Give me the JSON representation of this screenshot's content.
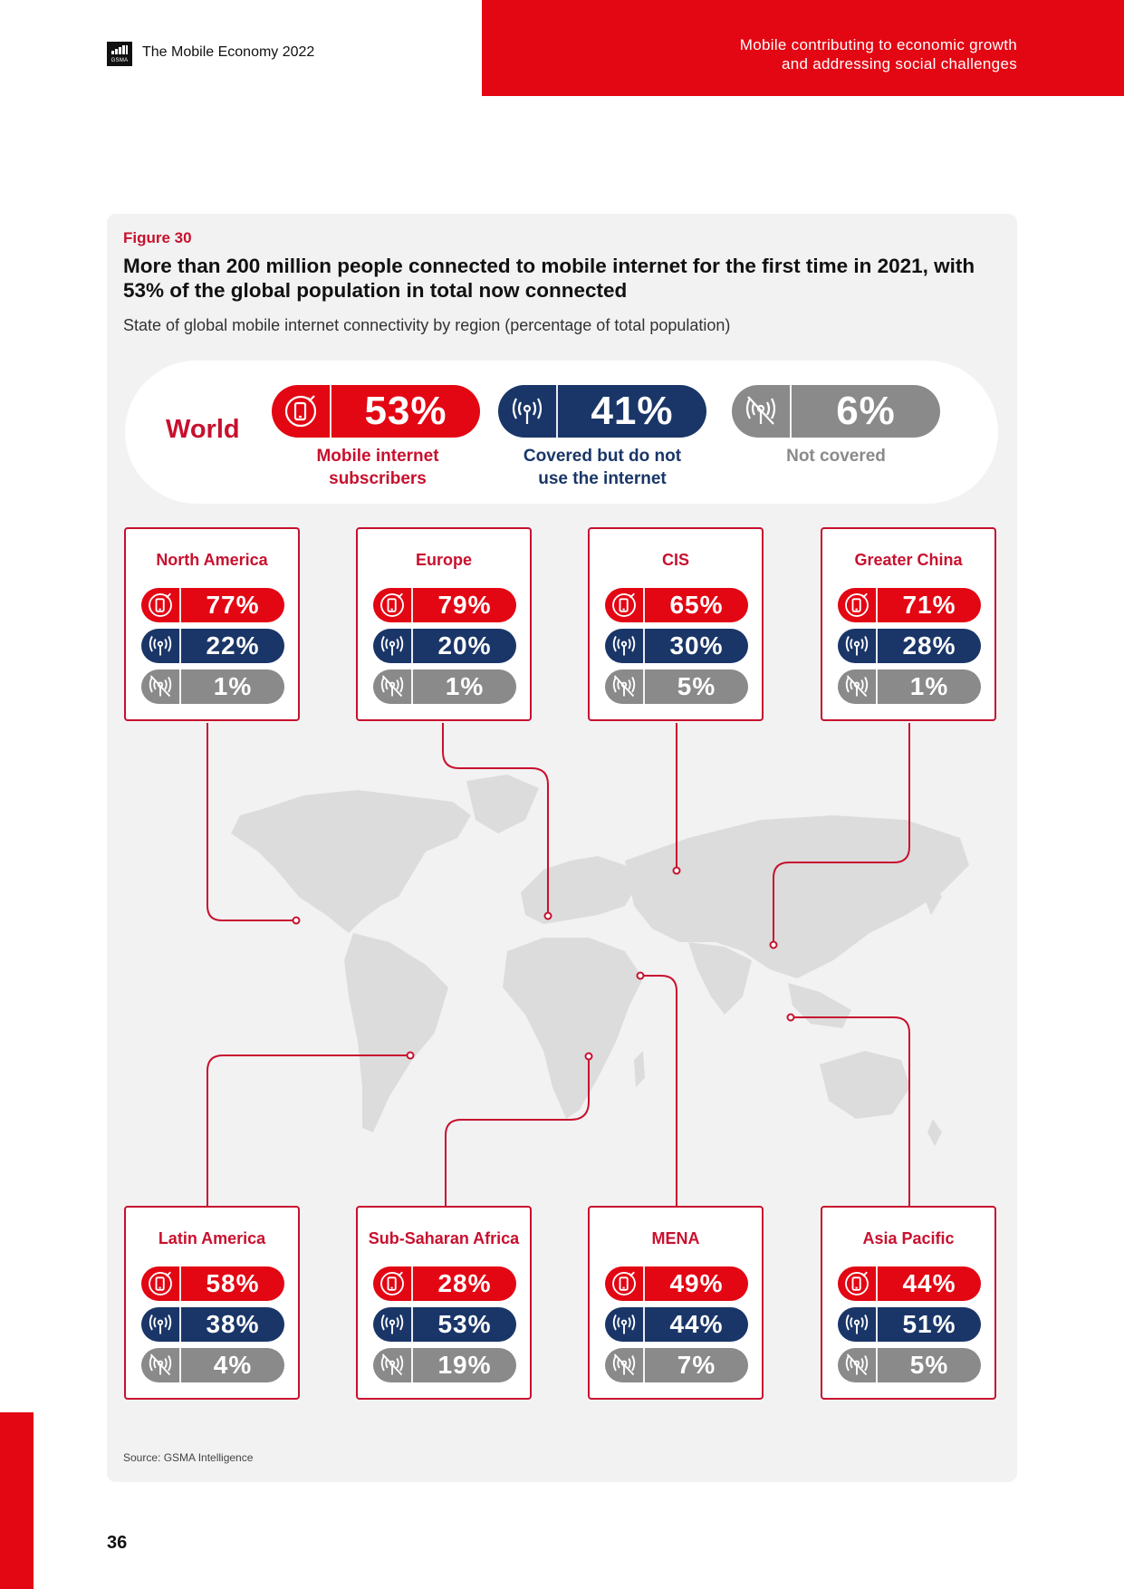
{
  "header": {
    "logo_text": "GSMA",
    "doc_title": "The Mobile Economy 2022",
    "section_line1": "Mobile contributing to economic growth",
    "section_line2": "and addressing social challenges"
  },
  "figure": {
    "label": "Figure 30",
    "title": "More than 200 million people connected to mobile internet for the first time in 2021, with 53% of the global population in total now connected",
    "subtitle": "State of global mobile internet connectivity by region (percentage of total population)",
    "source": "Source: GSMA Intelligence"
  },
  "world": {
    "label": "World",
    "subscribers": {
      "value": "53%",
      "caption_line1": "Mobile internet",
      "caption_line2": "subscribers"
    },
    "covered": {
      "value": "41%",
      "caption_line1": "Covered but do not",
      "caption_line2": "use the internet"
    },
    "not_covered": {
      "value": "6%",
      "caption_line1": "Not covered"
    }
  },
  "regions": [
    {
      "name": "North America",
      "subscribers": "77%",
      "covered": "22%",
      "not_covered": "1%"
    },
    {
      "name": "Europe",
      "subscribers": "79%",
      "covered": "20%",
      "not_covered": "1%"
    },
    {
      "name": "CIS",
      "subscribers": "65%",
      "covered": "30%",
      "not_covered": "5%"
    },
    {
      "name": "Greater China",
      "subscribers": "71%",
      "covered": "28%",
      "not_covered": "1%"
    },
    {
      "name": "Latin America",
      "subscribers": "58%",
      "covered": "38%",
      "not_covered": "4%"
    },
    {
      "name": "Sub-Saharan Africa",
      "subscribers": "28%",
      "covered": "53%",
      "not_covered": "19%"
    },
    {
      "name": "MENA",
      "subscribers": "49%",
      "covered": "44%",
      "not_covered": "7%"
    },
    {
      "name": "Asia Pacific",
      "subscribers": "44%",
      "covered": "51%",
      "not_covered": "5%"
    }
  ],
  "colors": {
    "brand_red": "#e30613",
    "subscribers": "#e30613",
    "covered": "#1a3668",
    "not_covered": "#8a8a8a",
    "panel_bg": "#f2f2f2",
    "map": "#dcdcdc"
  },
  "page_number": "36"
}
